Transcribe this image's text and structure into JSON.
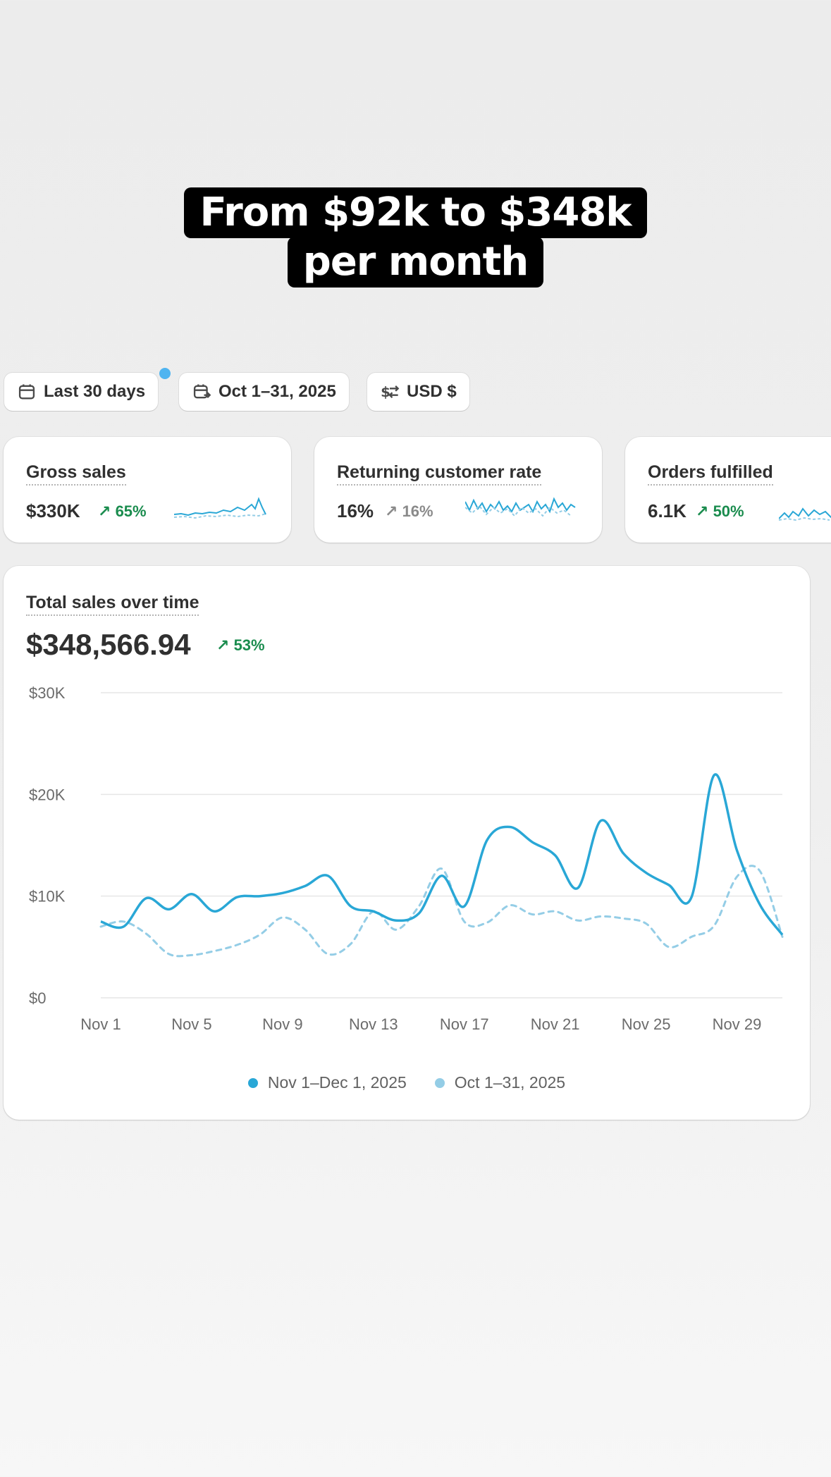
{
  "caption": {
    "line1": "From $92k to $348k",
    "line2": "per month"
  },
  "filters": {
    "range": {
      "label": "Last 30 days",
      "icon": "calendar-icon"
    },
    "compare": {
      "label": "Oct 1–31, 2025",
      "icon": "calendar-compare-icon"
    },
    "currency": {
      "label": "USD $",
      "icon": "currency-exchange-icon"
    }
  },
  "metrics": [
    {
      "title": "Gross sales",
      "value": "$330K",
      "change": "65%",
      "trend": "up"
    },
    {
      "title": "Returning customer rate",
      "value": "16%",
      "change": "16%",
      "trend": "flat"
    },
    {
      "title": "Orders fulfilled",
      "value": "6.1K",
      "change": "50%",
      "trend": "up"
    }
  ],
  "sales": {
    "title": "Total sales over time",
    "value": "$348,566.94",
    "change": "53%"
  },
  "colors": {
    "current": "#29a7d6",
    "previous": "#94cde6",
    "positive": "#1a8c4e"
  },
  "chart_data": {
    "type": "line",
    "title": "Total sales over time",
    "xlabel": "",
    "ylabel": "",
    "ylim": [
      0,
      30000
    ],
    "y_ticks": [
      "$0",
      "$10K",
      "$20K",
      "$30K"
    ],
    "y_tick_values": [
      0,
      10000,
      20000,
      30000
    ],
    "x": [
      "Nov 1",
      "Nov 2",
      "Nov 3",
      "Nov 4",
      "Nov 5",
      "Nov 6",
      "Nov 7",
      "Nov 8",
      "Nov 9",
      "Nov 10",
      "Nov 11",
      "Nov 12",
      "Nov 13",
      "Nov 14",
      "Nov 15",
      "Nov 16",
      "Nov 17",
      "Nov 18",
      "Nov 19",
      "Nov 20",
      "Nov 21",
      "Nov 22",
      "Nov 23",
      "Nov 24",
      "Nov 25",
      "Nov 26",
      "Nov 27",
      "Nov 28",
      "Nov 29",
      "Nov 30",
      "Dec 1"
    ],
    "x_tick_labels": [
      "Nov 1",
      "Nov 5",
      "Nov 9",
      "Nov 13",
      "Nov 17",
      "Nov 21",
      "Nov 25",
      "Nov 29"
    ],
    "grid": true,
    "legend": "bottom",
    "series": [
      {
        "name": "Nov 1–Dec 1, 2025",
        "style": "solid",
        "values": [
          7500,
          7000,
          9800,
          8700,
          10200,
          8500,
          9900,
          10000,
          10300,
          11000,
          12000,
          9000,
          8500,
          7600,
          8300,
          12000,
          9000,
          15500,
          16800,
          15300,
          14000,
          10800,
          17400,
          14200,
          12300,
          11100,
          9900,
          21900,
          14500,
          9200,
          6200
        ]
      },
      {
        "name": "Oct 1–31, 2025",
        "style": "dashed",
        "values": [
          7000,
          7500,
          6300,
          4300,
          4200,
          4600,
          5200,
          6200,
          7900,
          6700,
          4300,
          5300,
          8500,
          6700,
          9000,
          12700,
          7500,
          7400,
          9100,
          8200,
          8500,
          7600,
          8000,
          7800,
          7300,
          5000,
          6000,
          7100,
          11900,
          12500,
          6000
        ]
      }
    ]
  }
}
